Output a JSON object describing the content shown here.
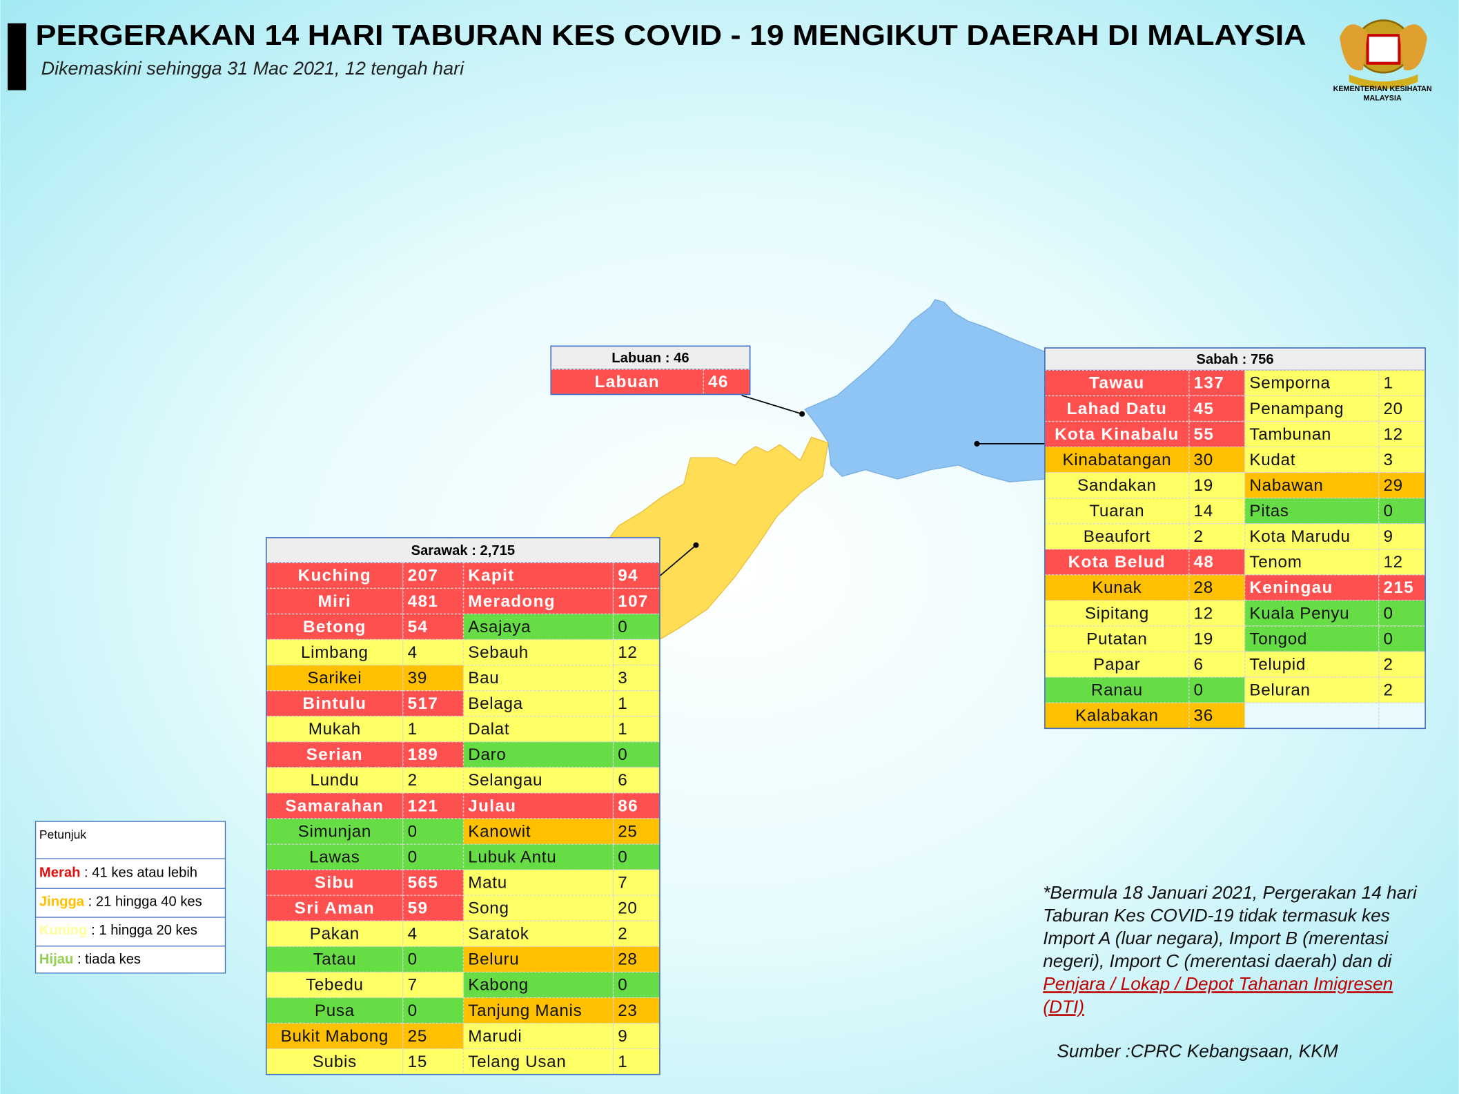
{
  "header": {
    "title": "PERGERAKAN 14 HARI TABURAN KES COVID - 19 MENGIKUT DAERAH DI MALAYSIA",
    "subtitle": "Dikemaskini sehingga 31 Mac 2021, 12 tengah hari"
  },
  "logo": {
    "lines": [
      "KEMENTERIAN KESIHATAN",
      "MALAYSIA"
    ]
  },
  "labuan": {
    "title": "Labuan : 46",
    "left": [
      {
        "name": "Labuan",
        "cases": 46,
        "color": "#ff5050"
      }
    ]
  },
  "sabah": {
    "title": "Sabah : 756",
    "left": [
      {
        "name": "Tawau",
        "cases": 137,
        "color": "#ff5050"
      },
      {
        "name": "Lahad Datu",
        "cases": 45,
        "color": "#ff5050"
      },
      {
        "name": "Kota Kinabalu",
        "cases": 55,
        "color": "#ff5050"
      },
      {
        "name": "Kinabatangan",
        "cases": 30,
        "color": "#ffc000"
      },
      {
        "name": "Sandakan",
        "cases": 19,
        "color": "#ffff66"
      },
      {
        "name": "Tuaran",
        "cases": 14,
        "color": "#ffff66"
      },
      {
        "name": "Beaufort",
        "cases": 2,
        "color": "#ffff66"
      },
      {
        "name": "Kota Belud",
        "cases": 48,
        "color": "#ff5050"
      },
      {
        "name": "Kunak",
        "cases": 28,
        "color": "#ffc000"
      },
      {
        "name": "Sipitang",
        "cases": 12,
        "color": "#ffff66"
      },
      {
        "name": "Putatan",
        "cases": 19,
        "color": "#ffff66"
      },
      {
        "name": "Papar",
        "cases": 6,
        "color": "#ffff66"
      },
      {
        "name": "Ranau",
        "cases": 0,
        "color": "#66dd44"
      },
      {
        "name": "Kalabakan",
        "cases": 36,
        "color": "#ffc000"
      }
    ],
    "right": [
      {
        "name": "Semporna",
        "cases": 1,
        "color": "#ffff66"
      },
      {
        "name": "Penampang",
        "cases": 20,
        "color": "#ffff66"
      },
      {
        "name": "Tambunan",
        "cases": 12,
        "color": "#ffff66"
      },
      {
        "name": "Kudat",
        "cases": 3,
        "color": "#ffff66"
      },
      {
        "name": "Nabawan",
        "cases": 29,
        "color": "#ffc000"
      },
      {
        "name": "Pitas",
        "cases": 0,
        "color": "#66dd44"
      },
      {
        "name": "Kota Marudu",
        "cases": 9,
        "color": "#ffff66"
      },
      {
        "name": "Tenom",
        "cases": 12,
        "color": "#ffff66"
      },
      {
        "name": "Keningau",
        "cases": 215,
        "color": "#ff5050"
      },
      {
        "name": "Kuala Penyu",
        "cases": 0,
        "color": "#66dd44"
      },
      {
        "name": "Tongod",
        "cases": 0,
        "color": "#66dd44"
      },
      {
        "name": "Telupid",
        "cases": 2,
        "color": "#ffff66"
      },
      {
        "name": "Beluran",
        "cases": 2,
        "color": "#ffff66"
      }
    ]
  },
  "sarawak": {
    "title": "Sarawak : 2,715",
    "left": [
      {
        "name": "Kuching",
        "cases": 207,
        "color": "#ff5050"
      },
      {
        "name": "Miri",
        "cases": 481,
        "color": "#ff5050"
      },
      {
        "name": "Betong",
        "cases": 54,
        "color": "#ff5050"
      },
      {
        "name": "Limbang",
        "cases": 4,
        "color": "#ffff66"
      },
      {
        "name": "Sarikei",
        "cases": 39,
        "color": "#ffc000"
      },
      {
        "name": "Bintulu",
        "cases": 517,
        "color": "#ff5050"
      },
      {
        "name": "Mukah",
        "cases": 1,
        "color": "#ffff66"
      },
      {
        "name": "Serian",
        "cases": 189,
        "color": "#ff5050"
      },
      {
        "name": "Lundu",
        "cases": 2,
        "color": "#ffff66"
      },
      {
        "name": "Samarahan",
        "cases": 121,
        "color": "#ff5050"
      },
      {
        "name": "Simunjan",
        "cases": 0,
        "color": "#66dd44"
      },
      {
        "name": "Lawas",
        "cases": 0,
        "color": "#66dd44"
      },
      {
        "name": "Sibu",
        "cases": 565,
        "color": "#ff5050"
      },
      {
        "name": "Sri Aman",
        "cases": 59,
        "color": "#ff5050"
      },
      {
        "name": "Pakan",
        "cases": 4,
        "color": "#ffff66"
      },
      {
        "name": "Tatau",
        "cases": 0,
        "color": "#66dd44"
      },
      {
        "name": "Tebedu",
        "cases": 7,
        "color": "#ffff66"
      },
      {
        "name": "Pusa",
        "cases": 0,
        "color": "#66dd44"
      },
      {
        "name": "Bukit Mabong",
        "cases": 25,
        "color": "#ffc000"
      },
      {
        "name": "Subis",
        "cases": 15,
        "color": "#ffff66"
      }
    ],
    "right": [
      {
        "name": "Kapit",
        "cases": 94,
        "color": "#ff5050"
      },
      {
        "name": "Meradong",
        "cases": 107,
        "color": "#ff5050"
      },
      {
        "name": "Asajaya",
        "cases": 0,
        "color": "#66dd44"
      },
      {
        "name": "Sebauh",
        "cases": 12,
        "color": "#ffff66"
      },
      {
        "name": "Bau",
        "cases": 3,
        "color": "#ffff66"
      },
      {
        "name": "Belaga",
        "cases": 1,
        "color": "#ffff66"
      },
      {
        "name": "Dalat",
        "cases": 1,
        "color": "#ffff66"
      },
      {
        "name": "Daro",
        "cases": 0,
        "color": "#66dd44"
      },
      {
        "name": "Selangau",
        "cases": 6,
        "color": "#ffff66"
      },
      {
        "name": "Julau",
        "cases": 86,
        "color": "#ff5050"
      },
      {
        "name": "Kanowit",
        "cases": 25,
        "color": "#ffc000"
      },
      {
        "name": "Lubuk Antu",
        "cases": 0,
        "color": "#66dd44"
      },
      {
        "name": "Matu",
        "cases": 7,
        "color": "#ffff66"
      },
      {
        "name": "Song",
        "cases": 20,
        "color": "#ffff66"
      },
      {
        "name": "Saratok",
        "cases": 2,
        "color": "#ffff66"
      },
      {
        "name": "Beluru",
        "cases": 28,
        "color": "#ffc000"
      },
      {
        "name": "Kabong",
        "cases": 0,
        "color": "#66dd44"
      },
      {
        "name": "Tanjung Manis",
        "cases": 23,
        "color": "#ffc000"
      },
      {
        "name": "Marudi",
        "cases": 9,
        "color": "#ffff66"
      },
      {
        "name": "Telang Usan",
        "cases": 1,
        "color": "#ffff66"
      }
    ]
  },
  "legend": {
    "title": "Petunjuk",
    "items": [
      {
        "label": "Merah",
        "text": " : 41 kes atau lebih",
        "color": "#e01010"
      },
      {
        "label": "Jingga",
        "text": " : 21 hingga 40 kes",
        "color": "#ffc000"
      },
      {
        "label": "Kuning",
        "text": " : 1 hingga 20 kes",
        "color": "#ffff99"
      },
      {
        "label": "Hijau",
        "text": " : tiada kes",
        "color": "#92d050"
      }
    ]
  },
  "note": {
    "lines": [
      "*Bermula 18 Januari 2021, Pergerakan 14 hari",
      "Taburan Kes COVID-19 tidak termasuk kes",
      "Import A (luar negara), Import B (merentasi",
      "negeri), Import C (merentasi daerah) dan di"
    ],
    "link": [
      "Penjara / Lokap / Depot Tahanan Imigresen",
      "(DTI)"
    ],
    "source": "Sumber :CPRC Kebangsaan,  KKM"
  }
}
